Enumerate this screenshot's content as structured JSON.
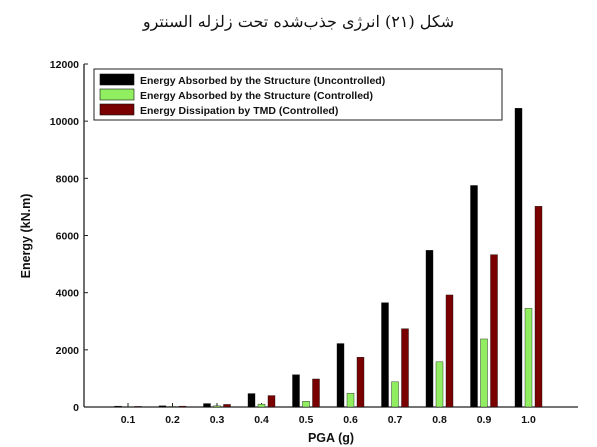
{
  "caption": "شکل (۲۱) انرژی جذب‌شده تحت زلزله السنترو",
  "chart_data": {
    "type": "bar",
    "categories": [
      "0.1",
      "0.2",
      "0.3",
      "0.4",
      "0.5",
      "0.6",
      "0.7",
      "0.8",
      "0.9",
      "1.0"
    ],
    "series": [
      {
        "name": "Energy Absorbed by the Structure (Uncontrolled)",
        "color": "#000000",
        "values": [
          30,
          40,
          120,
          470,
          1130,
          2220,
          3650,
          5480,
          7750,
          10450
        ]
      },
      {
        "name": "Energy Absorbed by the Structure (Controlled)",
        "color": "#90EE60",
        "values": [
          10,
          15,
          40,
          100,
          200,
          480,
          880,
          1580,
          2380,
          3450
        ]
      },
      {
        "name": "Energy Dissipation by TMD (Controlled)",
        "color": "#7A0000",
        "values": [
          20,
          30,
          90,
          400,
          980,
          1740,
          2740,
          3920,
          5330,
          7020
        ]
      }
    ],
    "xlabel": "PGA (g)",
    "ylabel": "Energy (kN.m)",
    "ylim": [
      0,
      12000
    ],
    "yticks": [
      "0",
      "2000",
      "4000",
      "6000",
      "8000",
      "10000",
      "12000"
    ],
    "legend_position": "top-left",
    "grid": false
  }
}
